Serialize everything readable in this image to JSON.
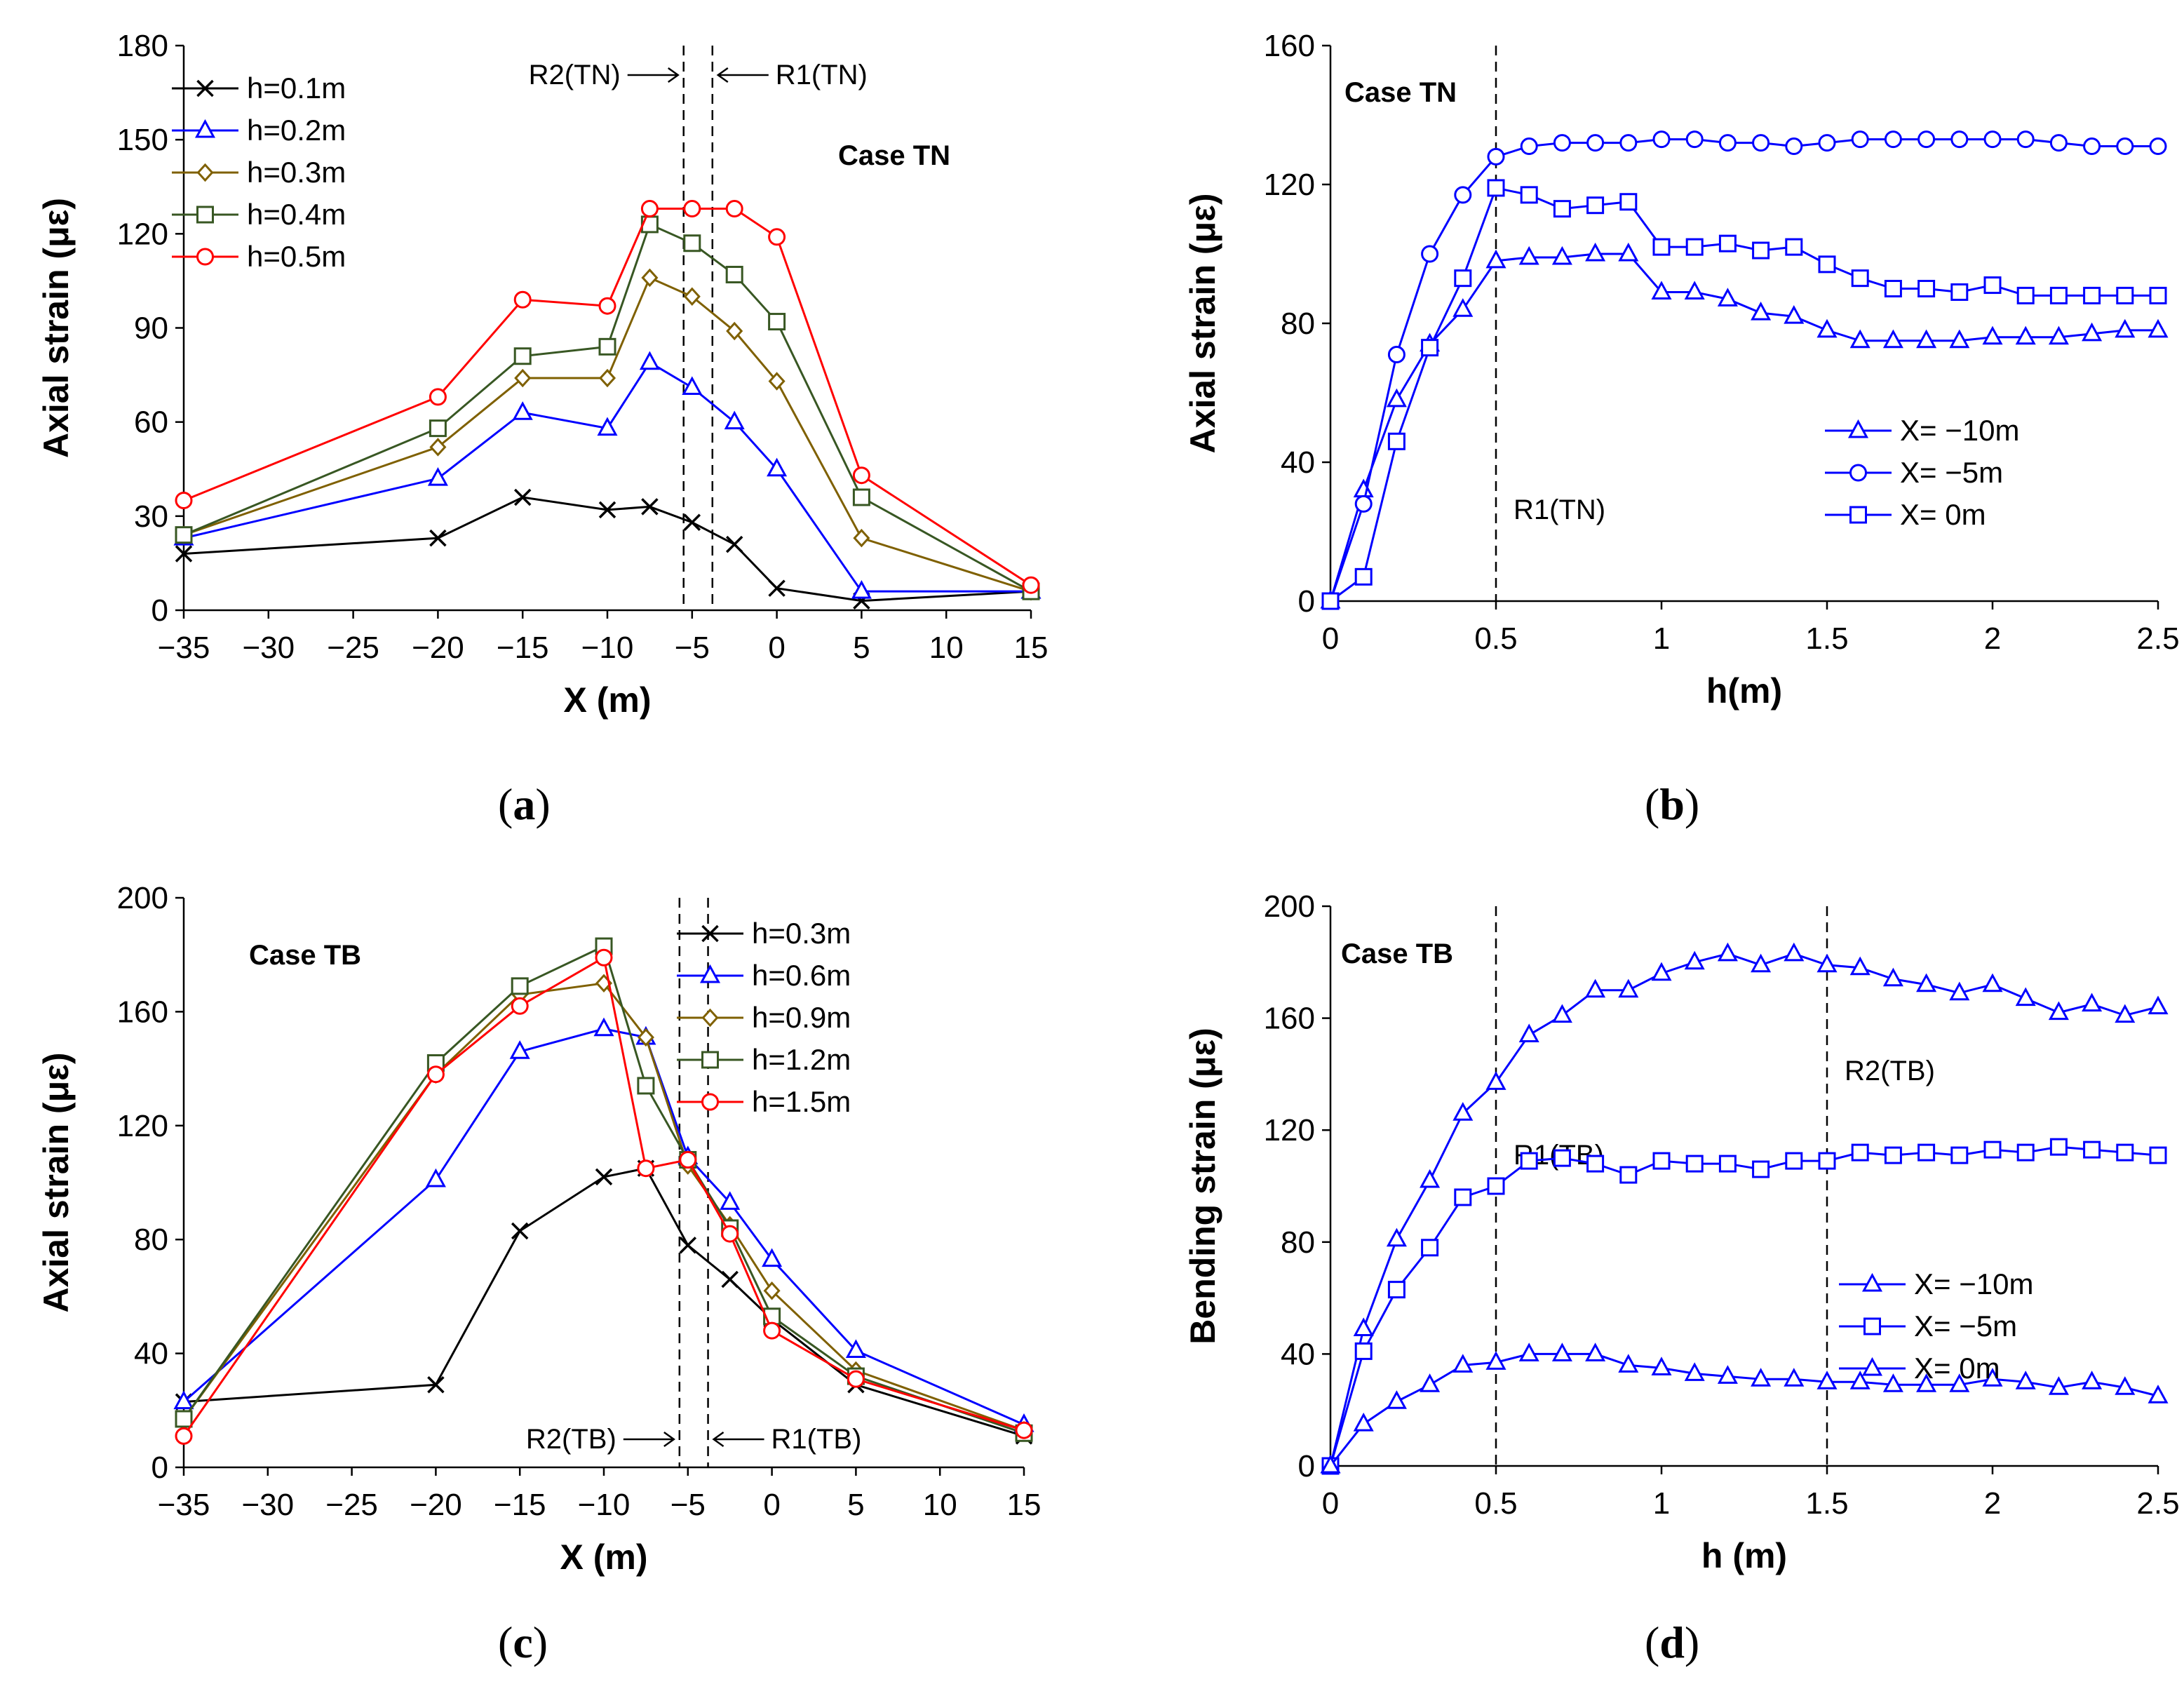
{
  "chart_data": [
    {
      "id": "a",
      "type": "line",
      "panel_label": "a",
      "case_label": "Case TN",
      "xlabel": "X (m)",
      "ylabel": "Axial strain (με)",
      "xlim": [
        -35,
        15
      ],
      "ylim": [
        0,
        180
      ],
      "xticks": [
        -35,
        -30,
        -25,
        -20,
        -15,
        -10,
        -5,
        0,
        5,
        10,
        15
      ],
      "xtick_labels": [
        "−35",
        "−30",
        "−25",
        "−20",
        "−15",
        "−10",
        "−5",
        "0",
        "5",
        "10",
        "15"
      ],
      "yticks": [
        0,
        30,
        60,
        90,
        120,
        150,
        180
      ],
      "ytick_labels": [
        "0",
        "30",
        "60",
        "90",
        "120",
        "150",
        "180"
      ],
      "legend_position": "top-left",
      "vlines": [
        {
          "x": -5.5,
          "label": "R2(TN)",
          "arrow": "right",
          "label_side": "left"
        },
        {
          "x": -3.8,
          "label": "R1(TN)",
          "arrow": "left",
          "label_side": "right"
        }
      ],
      "series": [
        {
          "name": "h=0.1m",
          "color": "#000000",
          "marker": "x",
          "x": [
            -35,
            -20,
            -15,
            -10,
            -7.5,
            -5,
            -2.5,
            0,
            5,
            15
          ],
          "y": [
            18,
            23,
            36,
            32,
            33,
            28,
            21,
            7,
            3,
            6
          ]
        },
        {
          "name": "h=0.2m",
          "color": "#0000ff",
          "marker": "triangle",
          "x": [
            -35,
            -20,
            -15,
            -10,
            -7.5,
            -5,
            -2.5,
            0,
            5,
            15
          ],
          "y": [
            23,
            42,
            63,
            58,
            79,
            71,
            60,
            45,
            6,
            6
          ]
        },
        {
          "name": "h=0.3m",
          "color": "#7f6000",
          "marker": "diamond",
          "x": [
            -35,
            -20,
            -15,
            -10,
            -7.5,
            -5,
            -2.5,
            0,
            5,
            15
          ],
          "y": [
            24,
            52,
            74,
            74,
            106,
            100,
            89,
            73,
            23,
            6
          ]
        },
        {
          "name": "h=0.4m",
          "color": "#385723",
          "marker": "square",
          "x": [
            -35,
            -20,
            -15,
            -10,
            -7.5,
            -5,
            -2.5,
            0,
            5,
            15
          ],
          "y": [
            24,
            58,
            81,
            84,
            123,
            117,
            107,
            92,
            36,
            6
          ]
        },
        {
          "name": "h=0.5m",
          "color": "#ff0000",
          "marker": "circle",
          "x": [
            -35,
            -20,
            -15,
            -10,
            -7.5,
            -5,
            -2.5,
            0,
            5,
            15
          ],
          "y": [
            35,
            68,
            99,
            97,
            128,
            128,
            128,
            119,
            43,
            8
          ]
        }
      ]
    },
    {
      "id": "b",
      "type": "line",
      "panel_label": "b",
      "case_label": "Case TN",
      "xlabel": "h(m)",
      "ylabel": "Axial strain (με)",
      "xlim": [
        0,
        2.5
      ],
      "ylim": [
        0,
        160
      ],
      "xticks": [
        0,
        0.5,
        1,
        1.5,
        2,
        2.5
      ],
      "xtick_labels": [
        "0",
        "0.5",
        "1",
        "1.5",
        "2",
        "2.5"
      ],
      "yticks": [
        0,
        40,
        80,
        120,
        160
      ],
      "ytick_labels": [
        "0",
        "40",
        "80",
        "120",
        "160"
      ],
      "legend_position": "bottom-right",
      "vlines": [
        {
          "x": 0.5,
          "label": "R1(TN)",
          "arrow": "none",
          "label_side": "right"
        }
      ],
      "series": [
        {
          "name": "X= −10m",
          "color": "#0000ff",
          "marker": "triangle",
          "x": [
            0,
            0.1,
            0.2,
            0.3,
            0.4,
            0.5,
            0.6,
            0.7,
            0.8,
            0.9,
            1.0,
            1.1,
            1.2,
            1.3,
            1.4,
            1.5,
            1.6,
            1.7,
            1.8,
            1.9,
            2.0,
            2.1,
            2.2,
            2.3,
            2.4,
            2.5
          ],
          "y": [
            0,
            32,
            58,
            74,
            84,
            98,
            99,
            99,
            100,
            100,
            89,
            89,
            87,
            83,
            82,
            78,
            75,
            75,
            75,
            75,
            76,
            76,
            76,
            77,
            78,
            78
          ]
        },
        {
          "name": "X= −5m",
          "color": "#0000ff",
          "marker": "circle",
          "x": [
            0,
            0.1,
            0.2,
            0.3,
            0.4,
            0.5,
            0.6,
            0.7,
            0.8,
            0.9,
            1.0,
            1.1,
            1.2,
            1.3,
            1.4,
            1.5,
            1.6,
            1.7,
            1.8,
            1.9,
            2.0,
            2.1,
            2.2,
            2.3,
            2.4,
            2.5
          ],
          "y": [
            0,
            28,
            71,
            100,
            117,
            128,
            131,
            132,
            132,
            132,
            133,
            133,
            132,
            132,
            131,
            132,
            133,
            133,
            133,
            133,
            133,
            133,
            132,
            131,
            131,
            131
          ]
        },
        {
          "name": "X= 0m",
          "color": "#0000ff",
          "marker": "square",
          "x": [
            0,
            0.1,
            0.2,
            0.3,
            0.4,
            0.5,
            0.6,
            0.7,
            0.8,
            0.9,
            1.0,
            1.1,
            1.2,
            1.3,
            1.4,
            1.5,
            1.6,
            1.7,
            1.8,
            1.9,
            2.0,
            2.1,
            2.2,
            2.3,
            2.4,
            2.5
          ],
          "y": [
            0,
            7,
            46,
            73,
            93,
            119,
            117,
            113,
            114,
            115,
            102,
            102,
            103,
            101,
            102,
            97,
            93,
            90,
            90,
            89,
            91,
            88,
            88,
            88,
            88,
            88
          ]
        }
      ]
    },
    {
      "id": "c",
      "type": "line",
      "panel_label": "c",
      "case_label": "Case TB",
      "xlabel": "X (m)",
      "ylabel": "Axial strain (με)",
      "xlim": [
        -35,
        15
      ],
      "ylim": [
        0,
        200
      ],
      "xticks": [
        -35,
        -30,
        -25,
        -20,
        -15,
        -10,
        -5,
        0,
        5,
        10,
        15
      ],
      "xtick_labels": [
        "−35",
        "−30",
        "−25",
        "−20",
        "−15",
        "−10",
        "−5",
        "0",
        "5",
        "10",
        "15"
      ],
      "yticks": [
        0,
        40,
        80,
        120,
        160,
        200
      ],
      "ytick_labels": [
        "0",
        "40",
        "80",
        "120",
        "160",
        "200"
      ],
      "legend_position": "top-right",
      "vlines": [
        {
          "x": -5.5,
          "label": "R2(TB)",
          "arrow": "right",
          "label_side": "left"
        },
        {
          "x": -3.8,
          "label": "R1(TB)",
          "arrow": "left",
          "label_side": "right"
        }
      ],
      "series": [
        {
          "name": "h=0.3m",
          "color": "#000000",
          "marker": "x",
          "x": [
            -35,
            -20,
            -15,
            -10,
            -7.5,
            -5,
            -2.5,
            0,
            5,
            15
          ],
          "y": [
            23,
            29,
            83,
            102,
            105,
            78,
            66,
            52,
            29,
            11
          ]
        },
        {
          "name": "h=0.6m",
          "color": "#0000ff",
          "marker": "triangle",
          "x": [
            -35,
            -20,
            -15,
            -10,
            -7.5,
            -5,
            -2.5,
            0,
            5,
            15
          ],
          "y": [
            23,
            101,
            146,
            154,
            151,
            109,
            93,
            73,
            41,
            15
          ]
        },
        {
          "name": "h=0.9m",
          "color": "#7f6000",
          "marker": "diamond",
          "x": [
            -35,
            -20,
            -15,
            -10,
            -7.5,
            -5,
            -2.5,
            0,
            5,
            15
          ],
          "y": [
            17,
            138,
            166,
            170,
            151,
            106,
            85,
            62,
            34,
            13
          ]
        },
        {
          "name": "h=1.2m",
          "color": "#385723",
          "marker": "square",
          "x": [
            -35,
            -20,
            -15,
            -10,
            -7.5,
            -5,
            -2.5,
            0,
            5,
            15
          ],
          "y": [
            17,
            142,
            169,
            183,
            134,
            108,
            84,
            53,
            32,
            12
          ]
        },
        {
          "name": "h=1.5m",
          "color": "#ff0000",
          "marker": "circle",
          "x": [
            -35,
            -20,
            -15,
            -10,
            -7.5,
            -5,
            -2.5,
            0,
            5,
            15
          ],
          "y": [
            11,
            138,
            162,
            179,
            105,
            108,
            82,
            48,
            31,
            13
          ]
        }
      ]
    },
    {
      "id": "d",
      "type": "line",
      "panel_label": "d",
      "case_label": "Case TB",
      "xlabel": "h (m)",
      "ylabel": "Bending strain (με)",
      "xlim": [
        0,
        2.5
      ],
      "ylim": [
        0,
        200
      ],
      "xticks": [
        0,
        0.5,
        1,
        1.5,
        2,
        2.5
      ],
      "xtick_labels": [
        "0",
        "0.5",
        "1",
        "1.5",
        "2",
        "2.5"
      ],
      "yticks": [
        0,
        40,
        80,
        120,
        160,
        200
      ],
      "ytick_labels": [
        "0",
        "40",
        "80",
        "120",
        "160",
        "200"
      ],
      "legend_position": "bottom-right",
      "vlines": [
        {
          "x": 0.5,
          "label": "R1(TB)",
          "arrow": "none",
          "label_side": "right"
        },
        {
          "x": 1.5,
          "label": "R2(TB)",
          "arrow": "none",
          "label_side": "right"
        }
      ],
      "series": [
        {
          "name": "X= −10m",
          "color": "#0000ff",
          "marker": "triangle",
          "x": [
            0,
            0.1,
            0.2,
            0.3,
            0.4,
            0.5,
            0.6,
            0.7,
            0.8,
            0.9,
            1.0,
            1.1,
            1.2,
            1.3,
            1.4,
            1.5,
            1.6,
            1.7,
            1.8,
            1.9,
            2.0,
            2.1,
            2.2,
            2.3,
            2.4,
            2.5
          ],
          "y": [
            0,
            49,
            81,
            102,
            126,
            137,
            154,
            161,
            170,
            170,
            176,
            180,
            183,
            179,
            183,
            179,
            178,
            174,
            172,
            169,
            172,
            167,
            162,
            165,
            161,
            164
          ]
        },
        {
          "name": "X= −5m",
          "color": "#0000ff",
          "marker": "square",
          "x": [
            0,
            0.1,
            0.2,
            0.3,
            0.4,
            0.5,
            0.6,
            0.7,
            0.8,
            0.9,
            1.0,
            1.1,
            1.2,
            1.3,
            1.4,
            1.5,
            1.6,
            1.7,
            1.8,
            1.9,
            2.0,
            2.1,
            2.2,
            2.3,
            2.4,
            2.5
          ],
          "y": [
            0,
            41,
            63,
            78,
            96,
            100,
            109,
            110,
            108,
            104,
            109,
            108,
            108,
            106,
            109,
            109,
            112,
            111,
            112,
            111,
            113,
            112,
            114,
            113,
            112,
            111
          ]
        },
        {
          "name": "X= 0m",
          "color": "#0000ff",
          "marker": "triangle",
          "x": [
            0,
            0.1,
            0.2,
            0.3,
            0.4,
            0.5,
            0.6,
            0.7,
            0.8,
            0.9,
            1.0,
            1.1,
            1.2,
            1.3,
            1.4,
            1.5,
            1.6,
            1.7,
            1.8,
            1.9,
            2.0,
            2.1,
            2.2,
            2.3,
            2.4,
            2.5
          ],
          "y": [
            0,
            15,
            23,
            29,
            36,
            37,
            40,
            40,
            40,
            36,
            35,
            33,
            32,
            31,
            31,
            30,
            30,
            29,
            29,
            29,
            31,
            30,
            28,
            30,
            28,
            25
          ]
        }
      ]
    }
  ]
}
